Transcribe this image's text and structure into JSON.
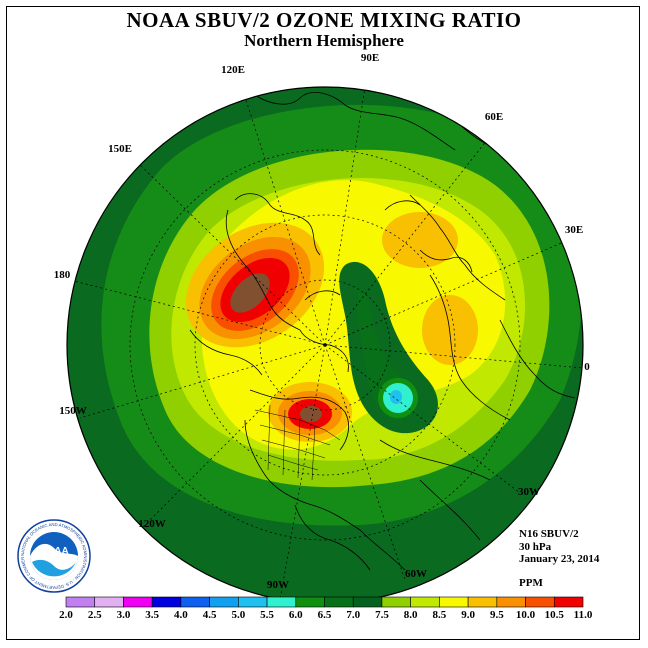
{
  "title": "NOAA SBUV/2 OZONE MIXING RATIO",
  "subtitle": "Northern Hemisphere",
  "longitude_labels": {
    "e90": "90E",
    "e60": "60E",
    "e120": "120E",
    "e30": "30E",
    "e150": "150E",
    "d180": "180",
    "d0": "0",
    "w150": "150W",
    "w30": "30W",
    "w120": "120W",
    "w60": "60W",
    "w90": "90W"
  },
  "info": {
    "satellite": "N16 SBUV/2",
    "level": "30 hPa",
    "date": "January 23, 2014",
    "unit": "PPM"
  },
  "logo": {
    "text": "NOAA",
    "ring_text": "NATIONAL OCEANIC AND ATMOSPHERIC ADMINISTRATION · U.S. DEPARTMENT OF COMMERCE"
  },
  "legend": {
    "ticks": [
      "2.0",
      "2.5",
      "3.0",
      "3.5",
      "4.0",
      "4.5",
      "5.0",
      "5.5",
      "6.0",
      "6.5",
      "7.0",
      "7.5",
      "8.0",
      "8.5",
      "9.0",
      "9.5",
      "10.0",
      "10.5",
      "11.0"
    ],
    "colors": [
      "#c080f0",
      "#e0b0f0",
      "#f000f0",
      "#0000e0",
      "#1060f0",
      "#10a0f0",
      "#20c0f0",
      "#30f0d0",
      "#109010",
      "#087018",
      "#066020",
      "#90d000",
      "#c0e800",
      "#f8f800",
      "#f8c000",
      "#f89000",
      "#f85000",
      "#f00000",
      "#805030"
    ]
  }
}
